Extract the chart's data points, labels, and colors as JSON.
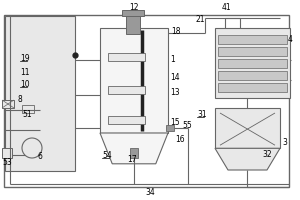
{
  "bg_color": "#ffffff",
  "line_color": "#666666",
  "gray_fill": "#c8c8c8",
  "light_gray": "#e8e8e8",
  "dark_gray": "#999999",
  "black": "#222222"
}
